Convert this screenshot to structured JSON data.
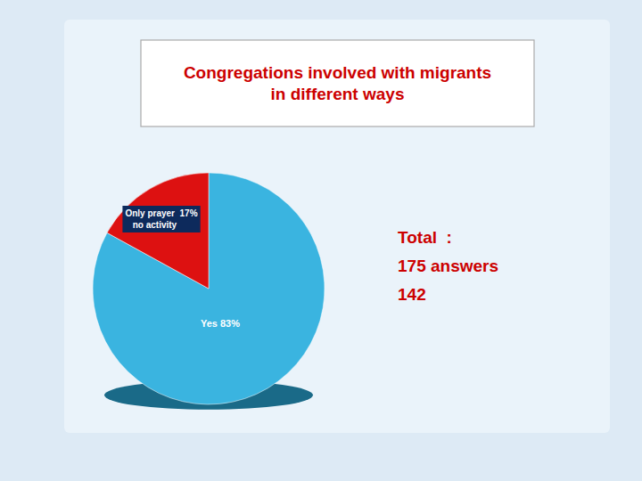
{
  "chart_data": {
    "type": "pie",
    "title": "Congregations involved with migrants\nin different ways",
    "values": [
      83,
      17
    ],
    "value_labels": [
      "Yes 83%",
      "Only prayer  17%\n   no activity"
    ],
    "colors": [
      "#3ab4e0",
      "#dd1111"
    ],
    "annotations": [
      "Total  :\n175 answers\n142"
    ]
  }
}
